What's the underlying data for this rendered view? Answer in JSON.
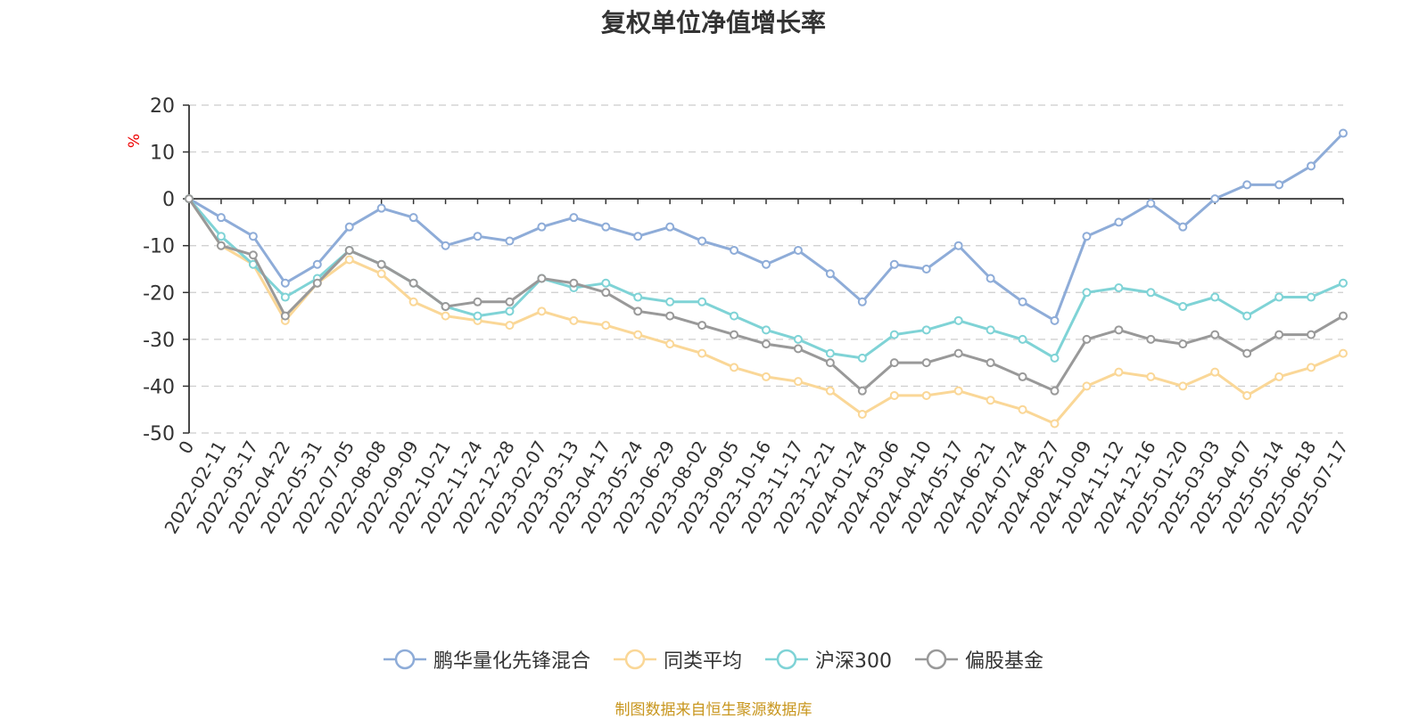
{
  "chart_data": {
    "type": "line",
    "title": "复权单位净值增长率",
    "ylabel": "%",
    "xlabel": "",
    "ylim": [
      -50,
      20
    ],
    "yticks": [
      "20",
      "10",
      "0",
      "-10",
      "-20",
      "-30",
      "-40",
      "-50"
    ],
    "grid": true,
    "legend_position": "bottom",
    "x_tick_labels": [
      "0",
      "2022-02-11",
      "2022-03-17",
      "2022-04-22",
      "2022-05-31",
      "2022-07-05",
      "2022-08-08",
      "2022-09-09",
      "2022-10-21",
      "2022-11-24",
      "2022-12-28",
      "2023-02-07",
      "2023-03-13",
      "2023-04-17",
      "2023-05-24",
      "2023-06-29",
      "2023-08-02",
      "2023-09-05",
      "2023-10-16",
      "2023-11-17",
      "2023-12-21",
      "2024-01-24",
      "2024-03-06",
      "2024-04-10",
      "2024-05-17",
      "2024-06-21",
      "2024-07-24",
      "2024-08-27",
      "2024-10-09",
      "2024-11-12",
      "2024-12-16",
      "2025-01-20",
      "2025-03-03",
      "2025-04-07",
      "2025-05-14",
      "2025-06-18",
      "2025-07-17"
    ],
    "series": [
      {
        "name": "鹏华量化先锋混合",
        "color": "#8eacd8",
        "values": [
          0,
          -4,
          -8,
          -18,
          -14,
          -6,
          -2,
          -4,
          -10,
          -8,
          -9,
          -6,
          -4,
          -6,
          -8,
          -6,
          -9,
          -11,
          -14,
          -11,
          -16,
          -22,
          -14,
          -15,
          -10,
          -17,
          -22,
          -26,
          -8,
          -5,
          -1,
          -6,
          0,
          3,
          3,
          7,
          14
        ]
      },
      {
        "name": "同类平均",
        "color": "#fad797",
        "values": [
          0,
          -10,
          -14,
          -26,
          -18,
          -13,
          -16,
          -22,
          -25,
          -26,
          -27,
          -24,
          -26,
          -27,
          -29,
          -31,
          -33,
          -36,
          -38,
          -39,
          -41,
          -46,
          -42,
          -42,
          -41,
          -43,
          -45,
          -48,
          -40,
          -37,
          -38,
          -40,
          -37,
          -42,
          -38,
          -36,
          -33
        ]
      },
      {
        "name": "沪深300",
        "color": "#7fd3d6",
        "values": [
          0,
          -8,
          -14,
          -21,
          -17,
          -11,
          -14,
          -18,
          -23,
          -25,
          -24,
          -17,
          -19,
          -18,
          -21,
          -22,
          -22,
          -25,
          -28,
          -30,
          -33,
          -34,
          -29,
          -28,
          -26,
          -28,
          -30,
          -34,
          -20,
          -19,
          -20,
          -23,
          -21,
          -25,
          -21,
          -21,
          -18
        ]
      },
      {
        "name": "偏股基金",
        "color": "#999999",
        "values": [
          0,
          -10,
          -12,
          -25,
          -18,
          -11,
          -14,
          -18,
          -23,
          -22,
          -22,
          -17,
          -18,
          -20,
          -24,
          -25,
          -27,
          -29,
          -31,
          -32,
          -35,
          -41,
          -35,
          -35,
          -33,
          -35,
          -38,
          -41,
          -30,
          -28,
          -30,
          -31,
          -29,
          -33,
          -29,
          -29,
          -25
        ]
      }
    ]
  },
  "source_note": "制图数据来自恒生聚源数据库"
}
